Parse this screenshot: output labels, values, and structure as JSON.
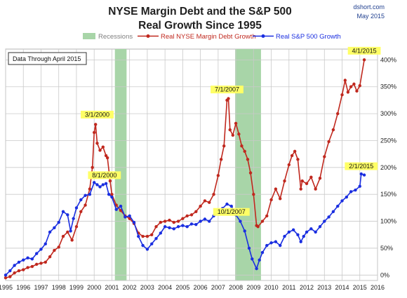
{
  "header": {
    "title_line1": "NYSE Margin Debt and the S&P 500",
    "title_line2": "Real Growth Since 1995",
    "source": "dshort.com",
    "date": "May 2015"
  },
  "note": "Data Through April 2015",
  "colors": {
    "margin_debt": "#c0281e",
    "sp500": "#1a2ee0",
    "recession": "#a8d5a8",
    "grid": "#c9c9c9"
  },
  "chart_data": {
    "type": "line",
    "title": "NYSE Margin Debt and the S&P 500 Real Growth Since 1995",
    "xlim": [
      1995,
      2016
    ],
    "ylim": [
      -10,
      420
    ],
    "y_ticks": [
      -10,
      0,
      50,
      100,
      150,
      200,
      250,
      300,
      350,
      400
    ],
    "y_tick_labels": [
      "",
      "0%",
      "50%",
      "100%",
      "150%",
      "200%",
      "250%",
      "300%",
      "350%",
      "400%"
    ],
    "x_ticks": [
      1995,
      1996,
      1997,
      1998,
      1999,
      2000,
      2001,
      2002,
      2003,
      2004,
      2005,
      2006,
      2007,
      2008,
      2009,
      2010,
      2011,
      2012,
      2013,
      2014,
      2015,
      2016
    ],
    "y_axis_side": "right",
    "grid": true,
    "legend": {
      "placement": "top-center",
      "recessions_label": "Recessions"
    },
    "recessions": [
      {
        "start": 2001.17,
        "end": 2001.83
      },
      {
        "start": 2007.96,
        "end": 2009.42
      }
    ],
    "series": [
      {
        "name": "Real NYSE Margin Debt Growth",
        "points": [
          [
            1995.0,
            -5
          ],
          [
            1995.25,
            -3
          ],
          [
            1995.5,
            4
          ],
          [
            1995.75,
            8
          ],
          [
            1996.0,
            10
          ],
          [
            1996.25,
            14
          ],
          [
            1996.5,
            16
          ],
          [
            1996.75,
            20
          ],
          [
            1997.0,
            22
          ],
          [
            1997.25,
            24
          ],
          [
            1997.5,
            34
          ],
          [
            1997.75,
            46
          ],
          [
            1998.0,
            52
          ],
          [
            1998.25,
            72
          ],
          [
            1998.5,
            80
          ],
          [
            1998.75,
            65
          ],
          [
            1999.0,
            90
          ],
          [
            1999.25,
            118
          ],
          [
            1999.5,
            130
          ],
          [
            1999.75,
            160
          ],
          [
            1999.9,
            200
          ],
          [
            2000.0,
            265
          ],
          [
            2000.08,
            280
          ],
          [
            2000.17,
            245
          ],
          [
            2000.33,
            232
          ],
          [
            2000.5,
            238
          ],
          [
            2000.67,
            222
          ],
          [
            2000.75,
            218
          ],
          [
            2000.9,
            175
          ],
          [
            2001.0,
            150
          ],
          [
            2001.25,
            130
          ],
          [
            2001.5,
            120
          ],
          [
            2001.75,
            110
          ],
          [
            2002.0,
            105
          ],
          [
            2002.25,
            96
          ],
          [
            2002.5,
            78
          ],
          [
            2002.75,
            72
          ],
          [
            2003.0,
            72
          ],
          [
            2003.25,
            75
          ],
          [
            2003.5,
            90
          ],
          [
            2003.75,
            98
          ],
          [
            2004.0,
            100
          ],
          [
            2004.25,
            102
          ],
          [
            2004.5,
            98
          ],
          [
            2004.75,
            100
          ],
          [
            2005.0,
            105
          ],
          [
            2005.25,
            110
          ],
          [
            2005.5,
            112
          ],
          [
            2005.75,
            118
          ],
          [
            2006.0,
            128
          ],
          [
            2006.25,
            138
          ],
          [
            2006.5,
            135
          ],
          [
            2006.75,
            150
          ],
          [
            2007.0,
            185
          ],
          [
            2007.17,
            215
          ],
          [
            2007.33,
            240
          ],
          [
            2007.5,
            325
          ],
          [
            2007.58,
            328
          ],
          [
            2007.67,
            270
          ],
          [
            2007.83,
            260
          ],
          [
            2008.0,
            282
          ],
          [
            2008.17,
            262
          ],
          [
            2008.33,
            240
          ],
          [
            2008.5,
            230
          ],
          [
            2008.67,
            215
          ],
          [
            2008.83,
            190
          ],
          [
            2009.0,
            150
          ],
          [
            2009.17,
            92
          ],
          [
            2009.25,
            90
          ],
          [
            2009.5,
            100
          ],
          [
            2009.75,
            110
          ],
          [
            2010.0,
            140
          ],
          [
            2010.25,
            160
          ],
          [
            2010.5,
            142
          ],
          [
            2010.75,
            175
          ],
          [
            2011.0,
            205
          ],
          [
            2011.17,
            222
          ],
          [
            2011.33,
            230
          ],
          [
            2011.5,
            215
          ],
          [
            2011.67,
            160
          ],
          [
            2011.75,
            175
          ],
          [
            2012.0,
            170
          ],
          [
            2012.25,
            182
          ],
          [
            2012.5,
            160
          ],
          [
            2012.75,
            180
          ],
          [
            2013.0,
            220
          ],
          [
            2013.25,
            248
          ],
          [
            2013.5,
            270
          ],
          [
            2013.75,
            300
          ],
          [
            2014.0,
            335
          ],
          [
            2014.17,
            362
          ],
          [
            2014.33,
            340
          ],
          [
            2014.5,
            350
          ],
          [
            2014.67,
            355
          ],
          [
            2014.83,
            342
          ],
          [
            2015.0,
            352
          ],
          [
            2015.25,
            400
          ]
        ]
      },
      {
        "name": "Real S&P 500 Growth",
        "points": [
          [
            1995.0,
            0
          ],
          [
            1995.25,
            8
          ],
          [
            1995.5,
            18
          ],
          [
            1995.75,
            24
          ],
          [
            1996.0,
            28
          ],
          [
            1996.25,
            32
          ],
          [
            1996.5,
            30
          ],
          [
            1996.75,
            40
          ],
          [
            1997.0,
            48
          ],
          [
            1997.25,
            58
          ],
          [
            1997.5,
            80
          ],
          [
            1997.75,
            88
          ],
          [
            1998.0,
            98
          ],
          [
            1998.25,
            118
          ],
          [
            1998.5,
            112
          ],
          [
            1998.67,
            82
          ],
          [
            1998.83,
            105
          ],
          [
            1999.0,
            125
          ],
          [
            1999.25,
            140
          ],
          [
            1999.5,
            148
          ],
          [
            1999.75,
            150
          ],
          [
            2000.0,
            172
          ],
          [
            2000.17,
            168
          ],
          [
            2000.33,
            164
          ],
          [
            2000.5,
            168
          ],
          [
            2000.67,
            170
          ],
          [
            2000.83,
            150
          ],
          [
            2001.0,
            145
          ],
          [
            2001.25,
            122
          ],
          [
            2001.5,
            128
          ],
          [
            2001.75,
            108
          ],
          [
            2002.0,
            110
          ],
          [
            2002.25,
            98
          ],
          [
            2002.5,
            72
          ],
          [
            2002.75,
            55
          ],
          [
            2003.0,
            48
          ],
          [
            2003.25,
            58
          ],
          [
            2003.5,
            68
          ],
          [
            2003.75,
            78
          ],
          [
            2004.0,
            90
          ],
          [
            2004.25,
            88
          ],
          [
            2004.5,
            86
          ],
          [
            2004.75,
            90
          ],
          [
            2005.0,
            92
          ],
          [
            2005.25,
            90
          ],
          [
            2005.5,
            95
          ],
          [
            2005.75,
            94
          ],
          [
            2006.0,
            100
          ],
          [
            2006.25,
            104
          ],
          [
            2006.5,
            100
          ],
          [
            2006.75,
            110
          ],
          [
            2007.0,
            118
          ],
          [
            2007.25,
            124
          ],
          [
            2007.5,
            132
          ],
          [
            2007.75,
            128
          ],
          [
            2008.0,
            112
          ],
          [
            2008.25,
            100
          ],
          [
            2008.5,
            82
          ],
          [
            2008.75,
            50
          ],
          [
            2008.92,
            30
          ],
          [
            2009.17,
            12
          ],
          [
            2009.33,
            28
          ],
          [
            2009.5,
            42
          ],
          [
            2009.75,
            55
          ],
          [
            2010.0,
            60
          ],
          [
            2010.25,
            62
          ],
          [
            2010.5,
            55
          ],
          [
            2010.75,
            72
          ],
          [
            2011.0,
            80
          ],
          [
            2011.25,
            84
          ],
          [
            2011.5,
            75
          ],
          [
            2011.67,
            62
          ],
          [
            2011.83,
            72
          ],
          [
            2012.0,
            80
          ],
          [
            2012.25,
            86
          ],
          [
            2012.5,
            80
          ],
          [
            2012.75,
            90
          ],
          [
            2013.0,
            100
          ],
          [
            2013.25,
            108
          ],
          [
            2013.5,
            118
          ],
          [
            2013.75,
            128
          ],
          [
            2014.0,
            138
          ],
          [
            2014.25,
            145
          ],
          [
            2014.5,
            155
          ],
          [
            2014.75,
            158
          ],
          [
            2015.0,
            165
          ],
          [
            2015.08,
            188
          ],
          [
            2015.25,
            186
          ]
        ]
      }
    ],
    "annotations": [
      {
        "label": "3/1/2000",
        "series": 0,
        "x": 2000.17,
        "y": 280
      },
      {
        "label": "8/1/2000",
        "series": 1,
        "x": 2000.58,
        "y": 170
      },
      {
        "label": "7/1/2007",
        "series": 0,
        "x": 2007.5,
        "y": 328
      },
      {
        "label": "10/1/2007",
        "series": 1,
        "x": 2007.75,
        "y": 135
      },
      {
        "label": "4/1/2015",
        "series": 0,
        "x": 2015.25,
        "y": 400
      },
      {
        "label": "2/1/2015",
        "series": 1,
        "x": 2015.08,
        "y": 188
      }
    ]
  }
}
